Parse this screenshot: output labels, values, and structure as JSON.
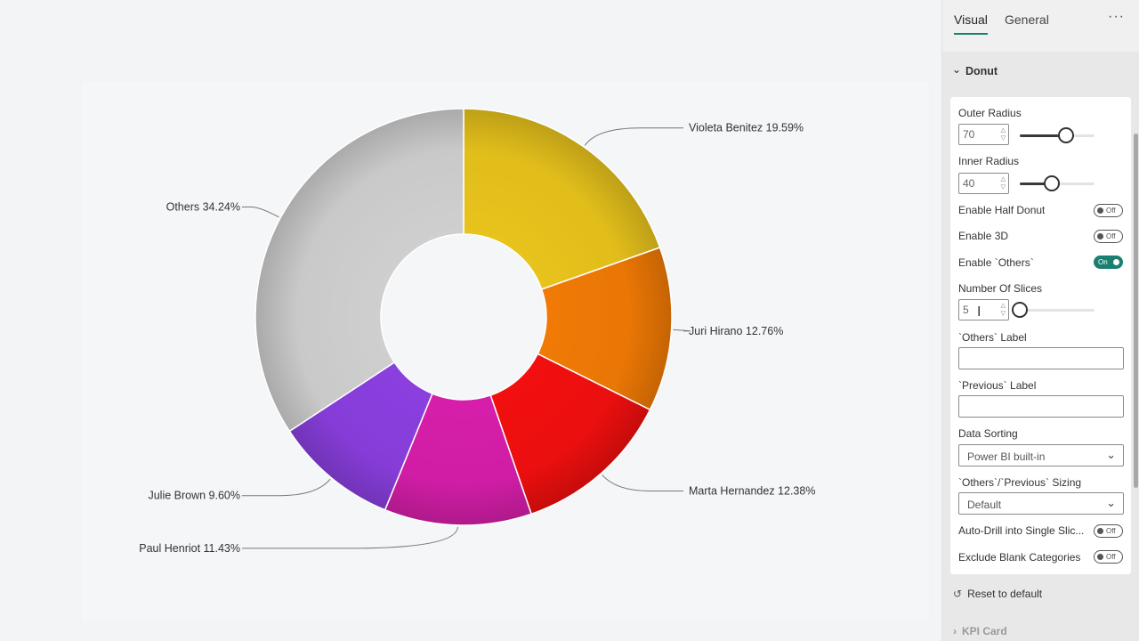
{
  "chart_data": {
    "type": "pie",
    "style": "donut",
    "slices": [
      {
        "label": "Violeta Benitez",
        "value": 19.59,
        "display": "Violeta Benitez 19.59%",
        "color": "#e8c31c"
      },
      {
        "label": "Juri Hirano",
        "value": 12.76,
        "display": "Juri Hirano 12.76%",
        "color": "#f07a05"
      },
      {
        "label": "Marta Hernandez",
        "value": 12.38,
        "display": "Marta Hernandez 12.38%",
        "color": "#f20f0f"
      },
      {
        "label": "Paul Henriot",
        "value": 11.43,
        "display": "Paul Henriot 11.43%",
        "color": "#d61eaa"
      },
      {
        "label": "Julie Brown",
        "value": 9.6,
        "display": "Julie Brown 9.60%",
        "color": "#8a3fdf"
      },
      {
        "label": "Others",
        "value": 34.24,
        "display": "Others 34.24%",
        "color": "#cfcfcf"
      }
    ],
    "outer_radius_pct": 70,
    "inner_radius_pct": 40,
    "legend": "none",
    "data_labels": "outside"
  },
  "pane": {
    "tabs": {
      "visual": "Visual",
      "general": "General"
    },
    "more": "···",
    "section": "Donut",
    "outer_radius": {
      "label": "Outer Radius",
      "value": "70",
      "level": 0.62
    },
    "inner_radius": {
      "label": "Inner Radius",
      "value": "40",
      "level": 0.43
    },
    "half_donut": {
      "label": "Enable Half Donut",
      "state": "Off"
    },
    "enable_3d": {
      "label": "Enable 3D",
      "state": "Off"
    },
    "enable_others": {
      "label": "Enable `Others`",
      "state": "On"
    },
    "num_slices": {
      "label": "Number Of Slices",
      "value": "5",
      "level": 0.0
    },
    "others_label": {
      "label": "`Others` Label",
      "value": ""
    },
    "previous_label": {
      "label": "`Previous` Label",
      "value": ""
    },
    "data_sorting": {
      "label": "Data Sorting",
      "value": "Power BI built-in"
    },
    "sizing": {
      "label": "`Others`/`Previous` Sizing",
      "value": "Default"
    },
    "auto_drill": {
      "label": "Auto-Drill into Single Slic...",
      "state": "Off"
    },
    "exclude_blank": {
      "label": "Exclude Blank Categories",
      "state": "Off"
    },
    "reset": "Reset to default",
    "next_section": "KPI Card"
  }
}
